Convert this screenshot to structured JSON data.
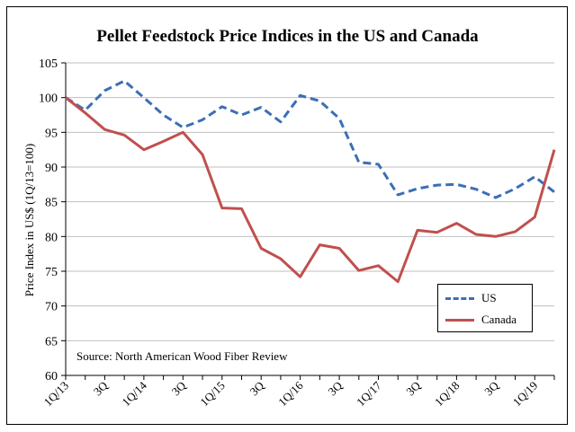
{
  "chart_data": {
    "type": "line",
    "title": "Pellet Feedstock Price Indices in the US and Canada",
    "ylabel": "Price Index in US$ (1Q/13=100)",
    "xlabel": "",
    "ylim": [
      60,
      105
    ],
    "yticks": [
      60,
      65,
      70,
      75,
      80,
      85,
      90,
      95,
      100,
      105
    ],
    "grid": true,
    "legend_position": "bottom-right",
    "source": "Source: North American Wood Fiber Review",
    "x_tick_labels": [
      {
        "index": 0,
        "label": "1Q/13"
      },
      {
        "index": 2,
        "label": "3Q"
      },
      {
        "index": 4,
        "label": "1Q/14"
      },
      {
        "index": 6,
        "label": "3Q"
      },
      {
        "index": 8,
        "label": "1Q/15"
      },
      {
        "index": 10,
        "label": "3Q"
      },
      {
        "index": 12,
        "label": "1Q/16"
      },
      {
        "index": 14,
        "label": "3Q"
      },
      {
        "index": 16,
        "label": "1Q/17"
      },
      {
        "index": 18,
        "label": "3Q"
      },
      {
        "index": 20,
        "label": "1Q/18"
      },
      {
        "index": 22,
        "label": "3Q"
      },
      {
        "index": 24,
        "label": "1Q/19"
      }
    ],
    "series": [
      {
        "name": "US",
        "color": "#3b6fb6",
        "style": "dashed",
        "values": [
          100,
          98.2,
          101,
          102.4,
          100,
          97.5,
          95.7,
          96.8,
          98.7,
          97.5,
          98.6,
          96.5,
          100.3,
          99.5,
          97,
          90.7,
          90.4,
          86,
          86.9,
          87.4,
          87.5,
          86.8,
          85.6,
          86.9,
          88.6,
          86.4
        ]
      },
      {
        "name": "Canada",
        "color": "#c0504d",
        "style": "solid",
        "values": [
          100,
          97.8,
          95.4,
          94.6,
          92.5,
          93.7,
          95,
          91.8,
          84.1,
          84,
          78.3,
          76.8,
          74.2,
          78.8,
          78.3,
          75.1,
          75.8,
          73.5,
          80.9,
          80.6,
          81.9,
          80.3,
          80,
          80.7,
          82.8,
          92.5
        ]
      }
    ]
  }
}
